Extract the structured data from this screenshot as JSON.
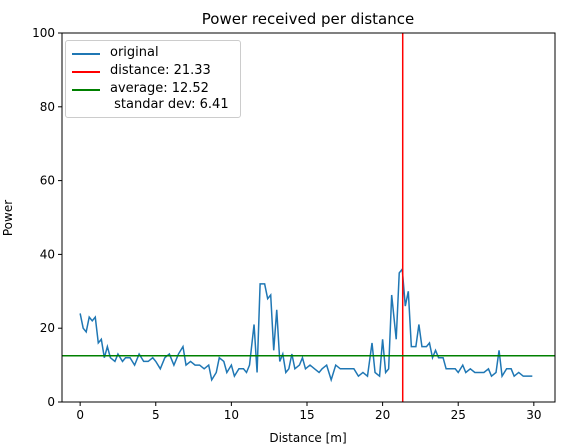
{
  "chart_data": {
    "type": "line",
    "title": "Power received per distance",
    "xlabel": "Distance [m]",
    "ylabel": "Power",
    "x": [
      0,
      0.2,
      0.4,
      0.6,
      0.8,
      1.0,
      1.2,
      1.4,
      1.6,
      1.8,
      2.0,
      2.3,
      2.5,
      2.8,
      3.0,
      3.3,
      3.6,
      3.9,
      4.2,
      4.5,
      4.8,
      5.0,
      5.3,
      5.6,
      5.9,
      6.2,
      6.5,
      6.8,
      7.0,
      7.3,
      7.6,
      7.9,
      8.2,
      8.5,
      8.7,
      9.0,
      9.2,
      9.5,
      9.7,
      10.0,
      10.2,
      10.5,
      10.8,
      11.0,
      11.2,
      11.5,
      11.7,
      11.9,
      12.2,
      12.4,
      12.6,
      12.8,
      13.0,
      13.2,
      13.4,
      13.6,
      13.8,
      14.0,
      14.2,
      14.5,
      14.7,
      14.9,
      15.2,
      15.5,
      15.8,
      16.0,
      16.3,
      16.6,
      16.9,
      17.2,
      17.5,
      17.8,
      18.1,
      18.4,
      18.7,
      19.0,
      19.3,
      19.5,
      19.8,
      20.0,
      20.2,
      20.4,
      20.6,
      20.9,
      21.1,
      21.3,
      21.5,
      21.7,
      21.9,
      22.2,
      22.4,
      22.6,
      22.9,
      23.1,
      23.3,
      23.5,
      23.7,
      24.0,
      24.2,
      24.5,
      24.8,
      25.0,
      25.3,
      25.5,
      25.8,
      26.1,
      26.4,
      26.7,
      27.0,
      27.2,
      27.5,
      27.7,
      27.9,
      28.2,
      28.5,
      28.7,
      29.0,
      29.3,
      29.6,
      29.9
    ],
    "series": [
      {
        "name": "original",
        "color": "#1f77b4",
        "values": [
          24,
          20,
          19,
          23,
          22,
          23,
          16,
          17,
          12,
          15,
          12,
          11,
          13,
          11,
          12,
          12,
          10,
          13,
          11,
          11,
          12,
          11,
          9,
          12,
          13,
          10,
          13,
          15,
          10,
          11,
          10,
          10,
          9,
          10,
          6,
          8,
          12,
          11,
          8,
          10,
          7,
          9,
          9,
          8,
          10,
          21,
          8,
          32,
          32,
          28,
          29,
          14,
          25,
          11,
          13,
          8,
          9,
          13,
          9,
          10,
          12,
          9,
          10,
          9,
          8,
          9,
          10,
          6,
          10,
          9,
          9,
          9,
          9,
          7,
          8,
          7,
          16,
          8,
          7,
          17,
          8,
          9,
          29,
          17,
          35,
          36,
          26,
          30,
          15,
          15,
          21,
          15,
          15,
          16,
          12,
          14,
          12,
          12,
          9,
          9,
          9,
          8,
          10,
          8,
          9,
          8,
          8,
          8,
          9,
          7,
          8,
          14,
          7,
          9,
          9,
          7,
          8,
          7,
          7,
          7
        ]
      }
    ],
    "vlines": [
      {
        "name": "distance: 21.33",
        "color": "#ff0000",
        "value": 21.33
      }
    ],
    "hlines": [
      {
        "name": "average: 12.52\n standar dev: 6.41",
        "color": "#008000",
        "value": 12.52
      }
    ],
    "xlim": [
      -1.2,
      31.4
    ],
    "ylim": [
      0,
      100
    ],
    "xticks": [
      0,
      5,
      10,
      15,
      20,
      25,
      30
    ],
    "yticks": [
      0,
      20,
      40,
      60,
      80,
      100
    ],
    "legend": "upper left"
  }
}
